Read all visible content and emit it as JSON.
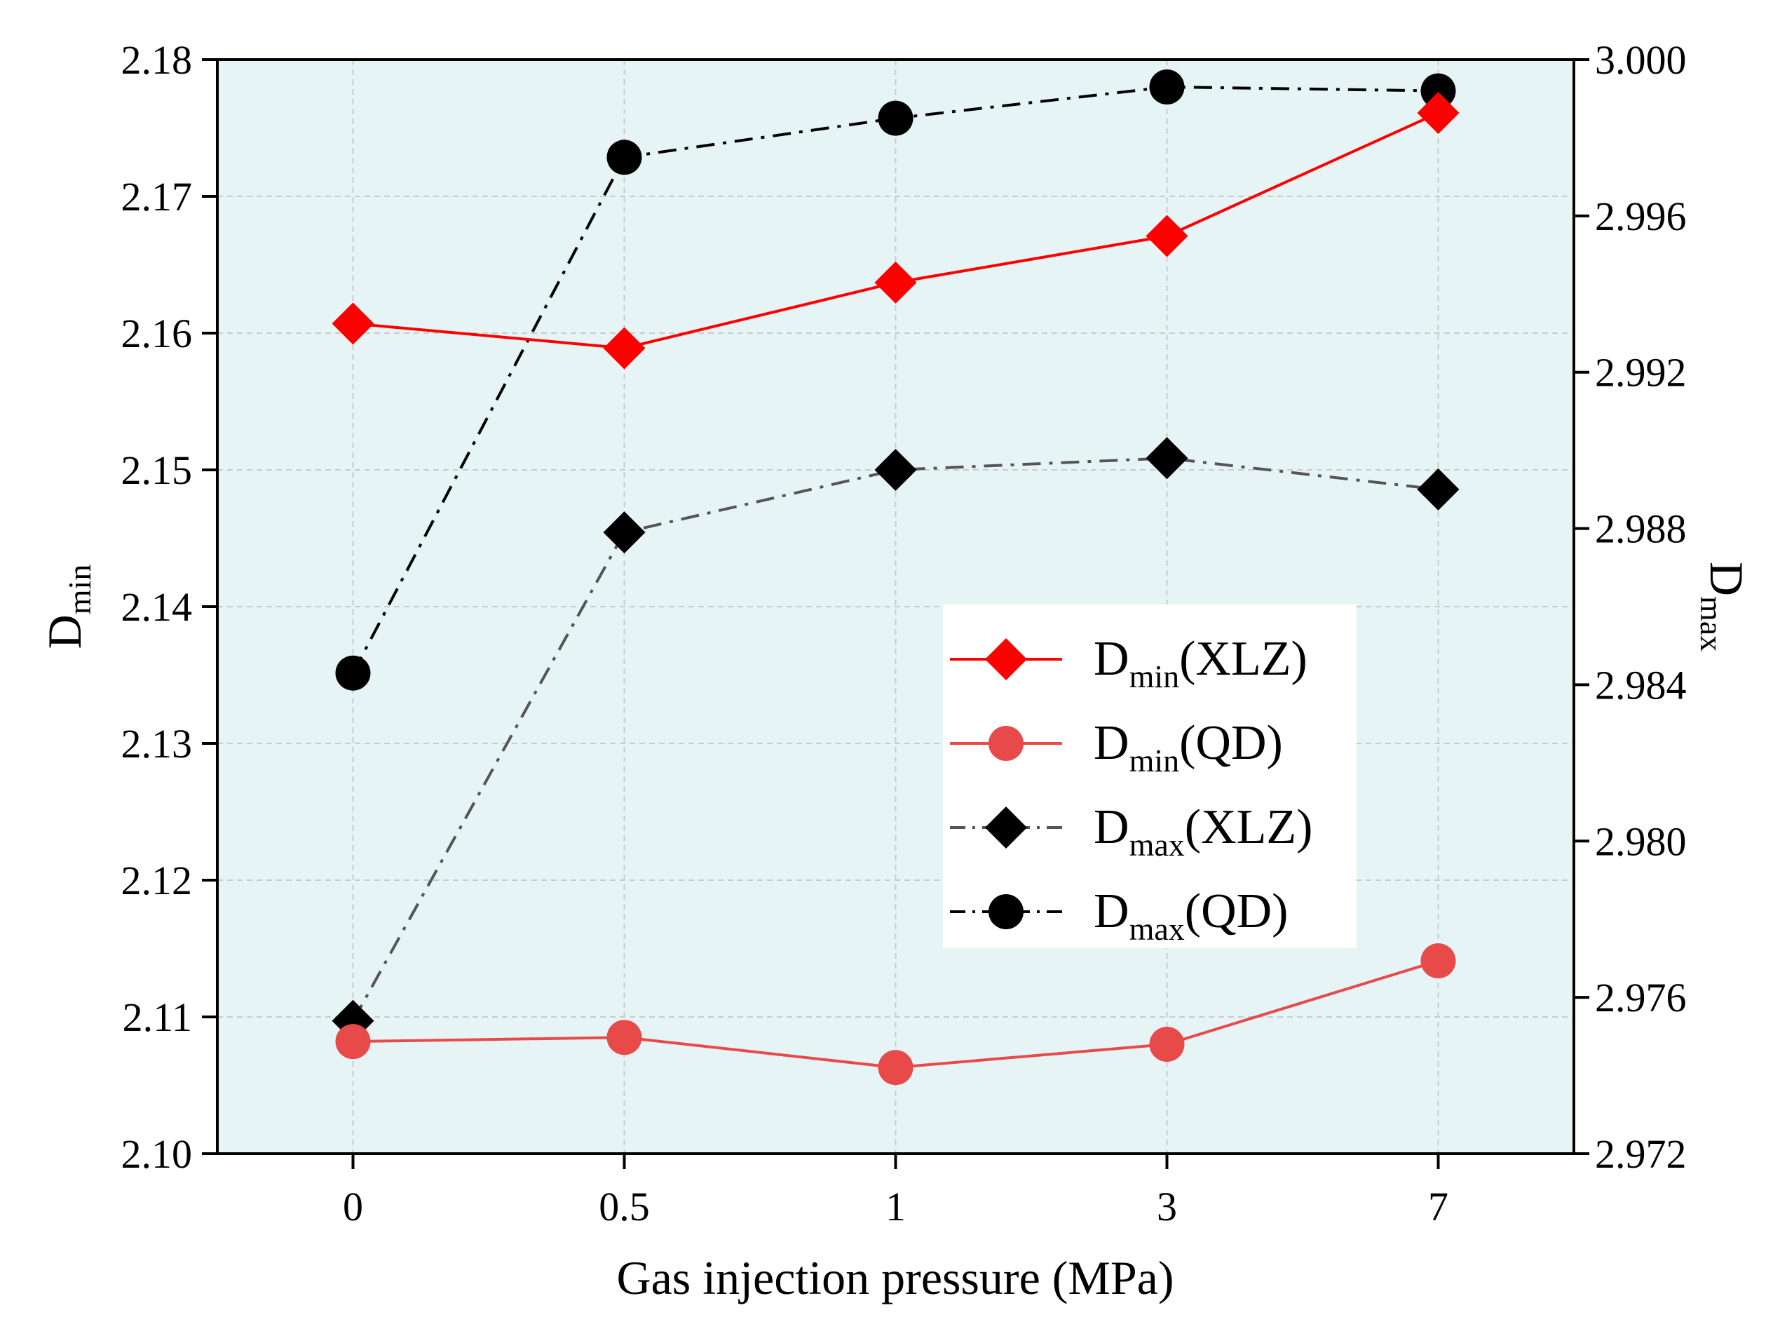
{
  "chart_data": {
    "type": "line",
    "categories": [
      "0",
      "0.5",
      "1",
      "3",
      "7"
    ],
    "xlabel": "Gas injection pressure (MPa)",
    "ylabel_left": {
      "main": "D",
      "sub": "min"
    },
    "ylabel_right": {
      "main": "D",
      "sub": "max"
    },
    "ylim_left": [
      2.1,
      2.18
    ],
    "yticks_left": [
      "2.10",
      "2.11",
      "2.12",
      "2.13",
      "2.14",
      "2.15",
      "2.16",
      "2.17",
      "2.18"
    ],
    "ylim_right": [
      2.972,
      3.0
    ],
    "yticks_right": [
      "2.972",
      "2.976",
      "2.980",
      "2.984",
      "2.988",
      "2.992",
      "2.996",
      "3.000"
    ],
    "grid": true,
    "legend_position": "center-right",
    "series": [
      {
        "name": "Dmin(XLZ)",
        "label_main": "D",
        "label_sub": "min",
        "label_suffix": "(XLZ)",
        "axis": "left",
        "marker": "diamond",
        "line": "solid",
        "color": "#ff0000",
        "values": [
          2.1607,
          2.1589,
          2.1637,
          2.1671,
          2.1761
        ]
      },
      {
        "name": "Dmin(QD)",
        "label_main": "D",
        "label_sub": "min",
        "label_suffix": "(QD)",
        "axis": "left",
        "marker": "circle",
        "line": "solid",
        "color": "#e84a4a",
        "values": [
          2.1082,
          2.1085,
          2.1063,
          2.108,
          2.1141
        ]
      },
      {
        "name": "Dmax(XLZ)",
        "label_main": "D",
        "label_sub": "max",
        "label_suffix": "(XLZ)",
        "axis": "right",
        "marker": "diamond",
        "line": "dashdot",
        "color": "#000000",
        "line_color": "#555555",
        "values": [
          2.9754,
          2.9879,
          2.9895,
          2.9898,
          2.989
        ]
      },
      {
        "name": "Dmax(QD)",
        "label_main": "D",
        "label_sub": "max",
        "label_suffix": "(QD)",
        "axis": "right",
        "marker": "circle",
        "line": "dashdot",
        "color": "#000000",
        "line_color": "#000000",
        "values": [
          2.9843,
          2.9975,
          2.9985,
          2.9993,
          2.9992
        ]
      }
    ]
  },
  "colors": {
    "plot_background": "#e6f4f5",
    "grid": "#c8cccc"
  }
}
